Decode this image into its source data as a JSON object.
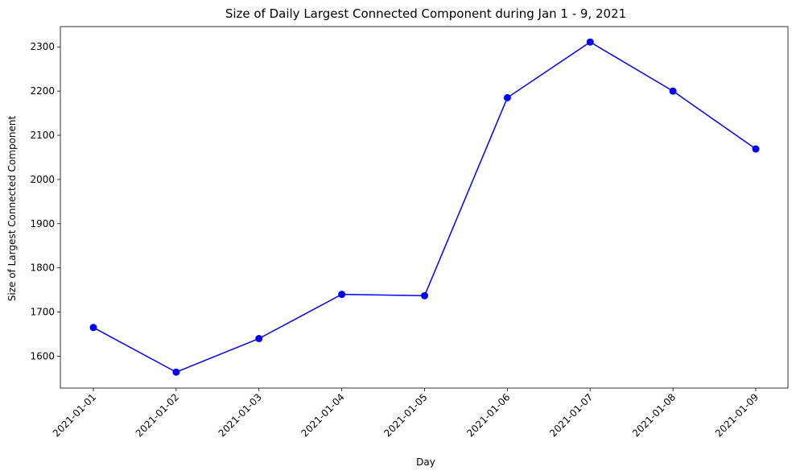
{
  "chart_data": {
    "type": "line",
    "title": "Size of Daily Largest Connected Component during Jan 1 - 9, 2021",
    "xlabel": "Day",
    "ylabel": "Size of Largest Connected Component",
    "categories": [
      "2021-01-01",
      "2021-01-02",
      "2021-01-03",
      "2021-01-04",
      "2021-01-05",
      "2021-01-06",
      "2021-01-07",
      "2021-01-08",
      "2021-01-09"
    ],
    "series": [
      {
        "values": [
          1665,
          1564,
          1640,
          1740,
          1737,
          2185,
          2311,
          2200,
          2069
        ],
        "color": "#0000ff",
        "marker": "circle"
      }
    ],
    "ylim": [
      1528,
      2346
    ],
    "yticks": [
      1600,
      1700,
      1800,
      1900,
      2000,
      2100,
      2200,
      2300
    ],
    "grid": false,
    "legend": "none"
  }
}
